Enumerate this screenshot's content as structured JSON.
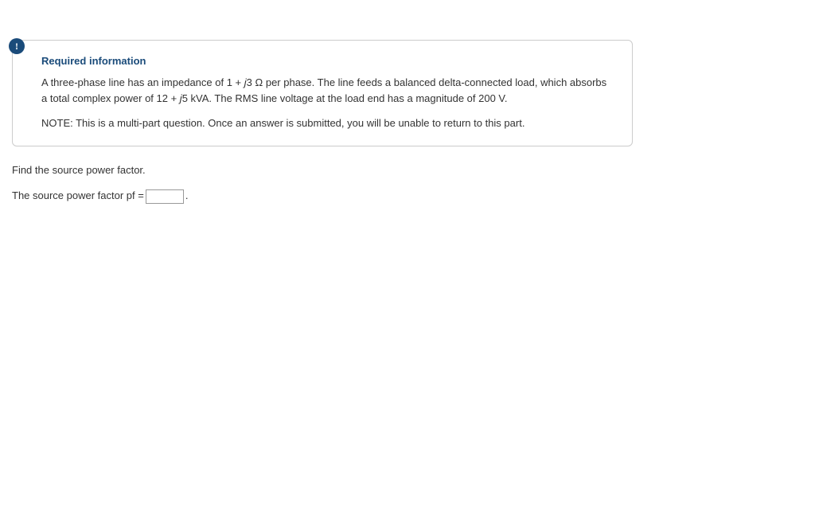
{
  "colors": {
    "icon_bg": "#1a4b7a",
    "title_color": "#1a4b7a",
    "border_color": "#cccccc",
    "text_color": "#333333"
  },
  "info": {
    "icon_char": "!",
    "title": "Required information",
    "para1_before_j3": "A three-phase line has an impedance of 1 + ",
    "j3": "j",
    "three": "3",
    "omega_text": " Ω per phase. The line feeds a balanced delta-connected load, which absorbs a total complex power of 12 + ",
    "j5": "j",
    "five": "5",
    "after_j5": " kVA. The RMS line voltage at the load end has a magnitude of 200 V.",
    "note": "NOTE: This is a multi-part question. Once an answer is submitted, you will be unable to return to this part."
  },
  "question": {
    "prompt": "Find the source power factor.",
    "answer_label": "The source power factor pf = ",
    "answer_suffix": " .",
    "input_value": ""
  }
}
